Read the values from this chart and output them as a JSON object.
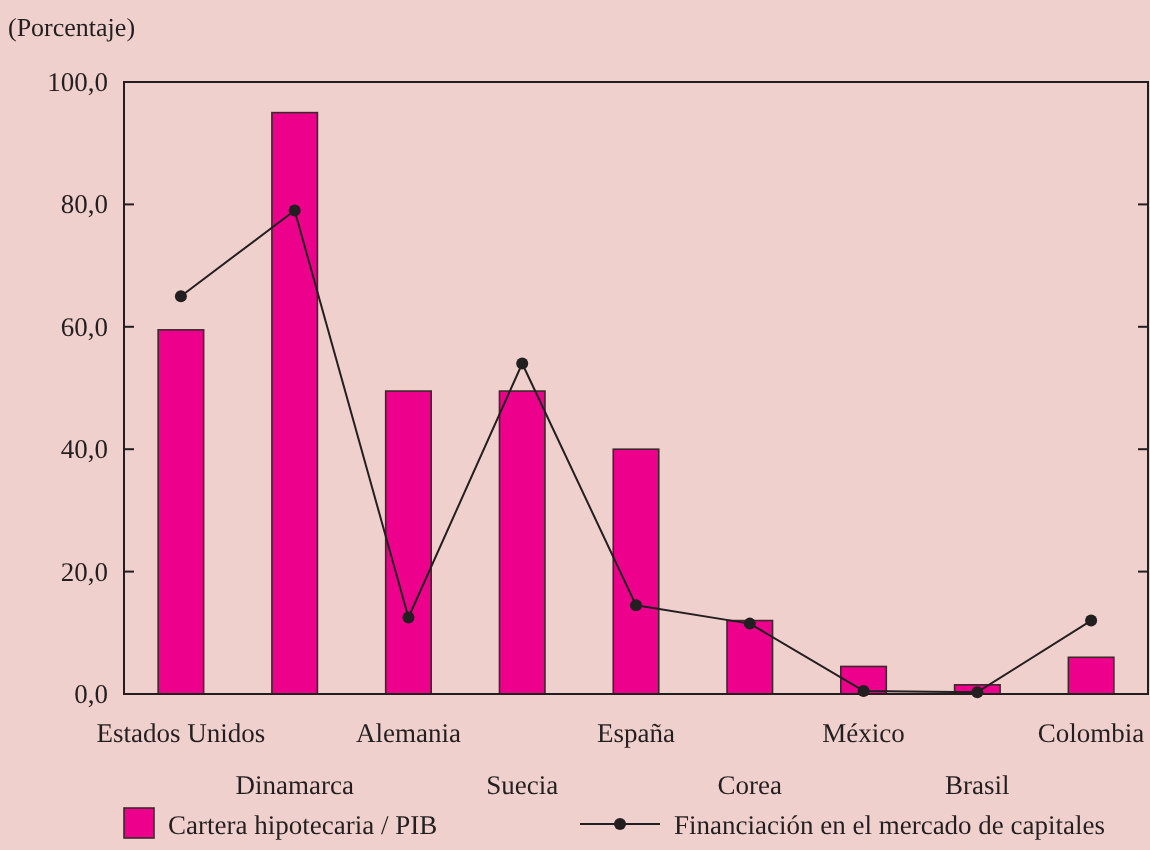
{
  "chart_data": {
    "type": "bar",
    "ylabel": "(Porcentaje)",
    "categories": [
      "Estados Unidos",
      "Dinamarca",
      "Alemania",
      "Suecia",
      "España",
      "Corea",
      "México",
      "Brasil",
      "Colombia"
    ],
    "series": [
      {
        "name": "Cartera hipotecaria / PIB",
        "color": "#ec008c",
        "values": [
          59.5,
          95,
          49.5,
          49.5,
          40,
          12,
          4.5,
          1.5,
          6
        ]
      },
      {
        "name": "Financiación en el mercado de capitales",
        "type": "line",
        "color": "#231f20",
        "marker": "circle",
        "values": [
          65,
          79,
          12.5,
          54,
          14.5,
          11.5,
          0.5,
          0.3,
          12
        ]
      }
    ],
    "ylim": [
      0,
      100
    ],
    "yticks": [
      {
        "value": 0,
        "label": "0,0"
      },
      {
        "value": 20,
        "label": "20,0"
      },
      {
        "value": 40,
        "label": "40,0"
      },
      {
        "value": 60,
        "label": "60,0"
      },
      {
        "value": 80,
        "label": "80,0"
      },
      {
        "value": 100,
        "label": "100,0"
      }
    ],
    "grid": false,
    "legend": "bottom"
  }
}
